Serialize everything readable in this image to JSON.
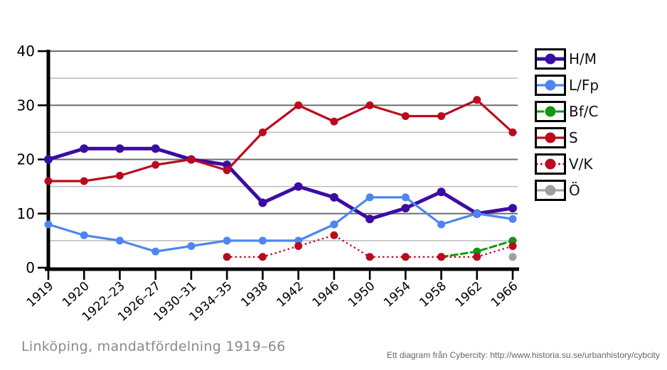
{
  "title": "Linköping, mandatfördelning 1919–66",
  "attribution": "Ett diagram från Cybercity: http://www.historia.su.se/urbanhistory/cybcity",
  "colors": {
    "background": "#ffffff",
    "axis": "#000000",
    "grid_major": "#6e6e6e",
    "grid_minor": "#bbbbbb",
    "tick_label": "#000000",
    "title_text": "#8a8a8a",
    "attribution_text": "#666666"
  },
  "chart_data": {
    "type": "line",
    "title": "Linköping, mandatfördelning 1919–66",
    "xlabel": "",
    "ylabel": "",
    "ylim": [
      0,
      40
    ],
    "y_ticks": [
      0,
      10,
      20,
      30,
      40
    ],
    "grid": true,
    "legend_position": "right",
    "categories": [
      "1919",
      "1920",
      "1922–23",
      "1926–27",
      "1930–31",
      "1934–35",
      "1938",
      "1942",
      "1946",
      "1950",
      "1954",
      "1958",
      "1962",
      "1966"
    ],
    "series": [
      {
        "name": "H/M",
        "color": "#3b0ca3",
        "style": "solid",
        "line_width": 5,
        "values": [
          20,
          22,
          22,
          22,
          20,
          19,
          12,
          15,
          13,
          9,
          11,
          14,
          10,
          11
        ]
      },
      {
        "name": "L/Fp",
        "color": "#4d86f0",
        "style": "solid",
        "line_width": 3.2,
        "values": [
          8,
          6,
          5,
          3,
          4,
          5,
          5,
          5,
          8,
          13,
          13,
          8,
          10,
          9
        ]
      },
      {
        "name": "Bf/C",
        "color": "#129612",
        "style": "dashed",
        "line_width": 3,
        "values": [
          null,
          null,
          null,
          null,
          null,
          null,
          null,
          null,
          null,
          null,
          null,
          2,
          3,
          5
        ]
      },
      {
        "name": "S",
        "color": "#bb0a1e",
        "style": "solid",
        "line_width": 3.2,
        "values": [
          16,
          16,
          17,
          19,
          20,
          18,
          25,
          30,
          27,
          30,
          28,
          28,
          31,
          25
        ]
      },
      {
        "name": "V/K",
        "color": "#bb0a1e",
        "style": "dotted",
        "line_width": 2.6,
        "values": [
          null,
          null,
          null,
          null,
          null,
          2,
          2,
          4,
          6,
          2,
          2,
          2,
          2,
          4
        ]
      },
      {
        "name": "Ö",
        "color": "#9e9e9e",
        "style": "solid",
        "line_width": 3,
        "values": [
          null,
          null,
          null,
          null,
          null,
          null,
          null,
          null,
          null,
          null,
          null,
          null,
          null,
          2
        ]
      }
    ]
  }
}
